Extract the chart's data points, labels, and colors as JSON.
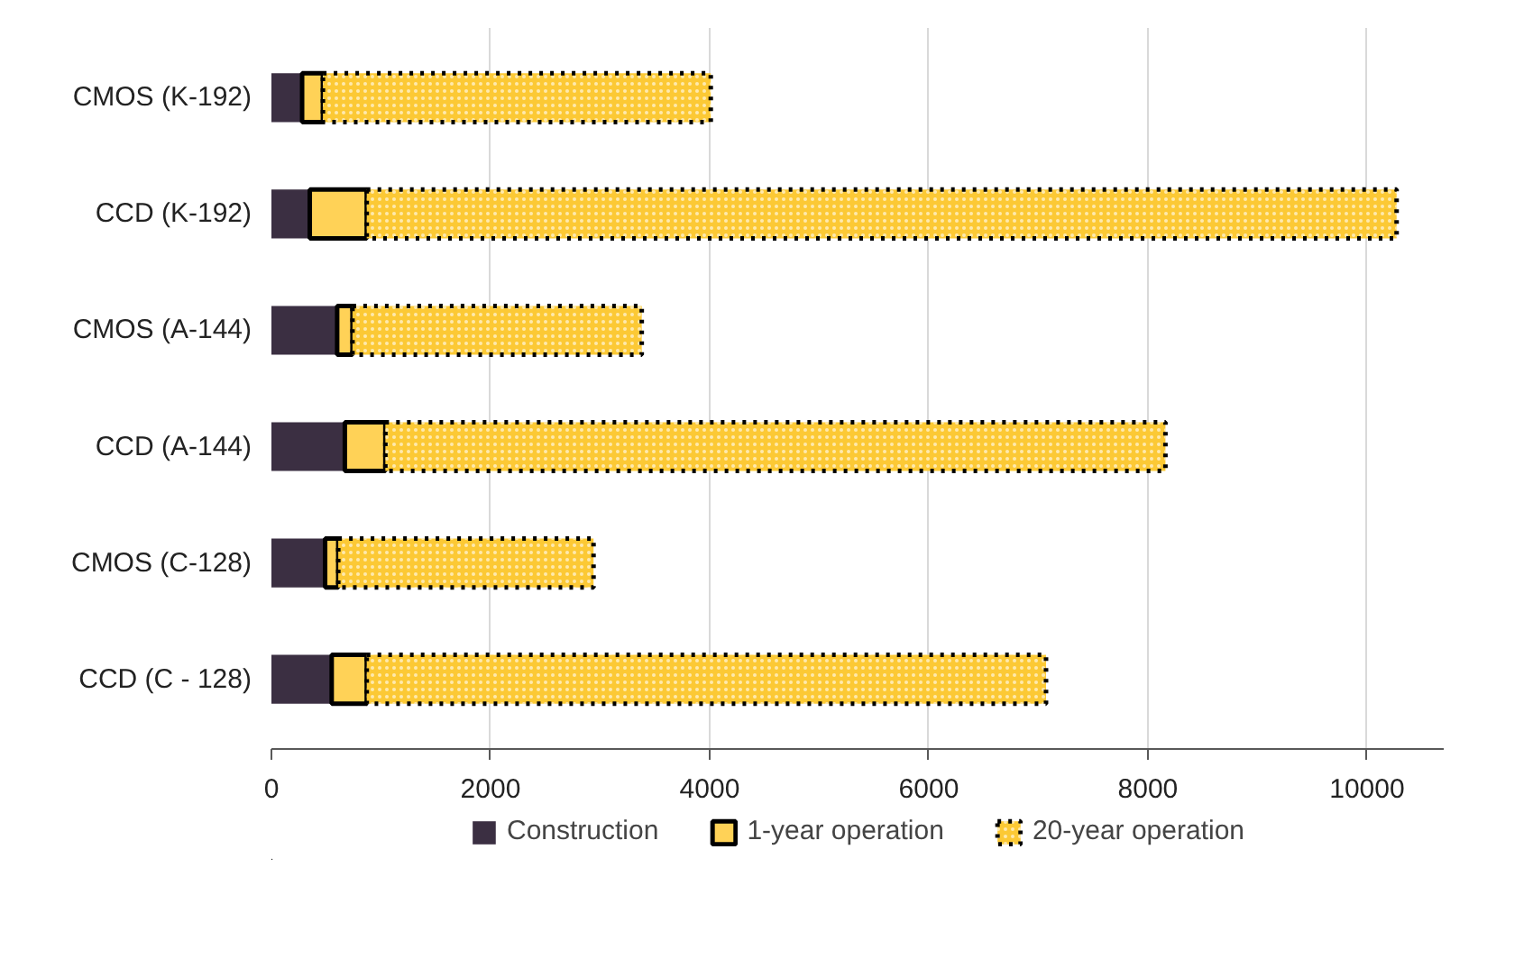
{
  "chart_data": {
    "type": "bar",
    "orientation": "horizontal",
    "stacked": true,
    "categories": [
      "CMOS (K-192)",
      "CCD (K-192)",
      "CMOS (A-144)",
      "CCD (A-144)",
      "CMOS (C-128)",
      "CCD (C - 128)"
    ],
    "series": [
      {
        "name": "Construction",
        "color": "#3b2f42",
        "values": [
          280,
          350,
          600,
          670,
          490,
          550
        ]
      },
      {
        "name": "1-year operation",
        "color": "#ffd257",
        "line_style": "solid",
        "values": [
          190,
          520,
          140,
          370,
          120,
          320
        ]
      },
      {
        "name": "20-year operation",
        "color": "#fcc935",
        "line_style": "dotted",
        "values": [
          3540,
          9400,
          2640,
          7120,
          2330,
          6200
        ]
      }
    ],
    "xlim": [
      0,
      10700
    ],
    "xticks": [
      0,
      2000,
      4000,
      6000,
      8000,
      10000
    ],
    "grid": "x",
    "legend": "bottom"
  }
}
